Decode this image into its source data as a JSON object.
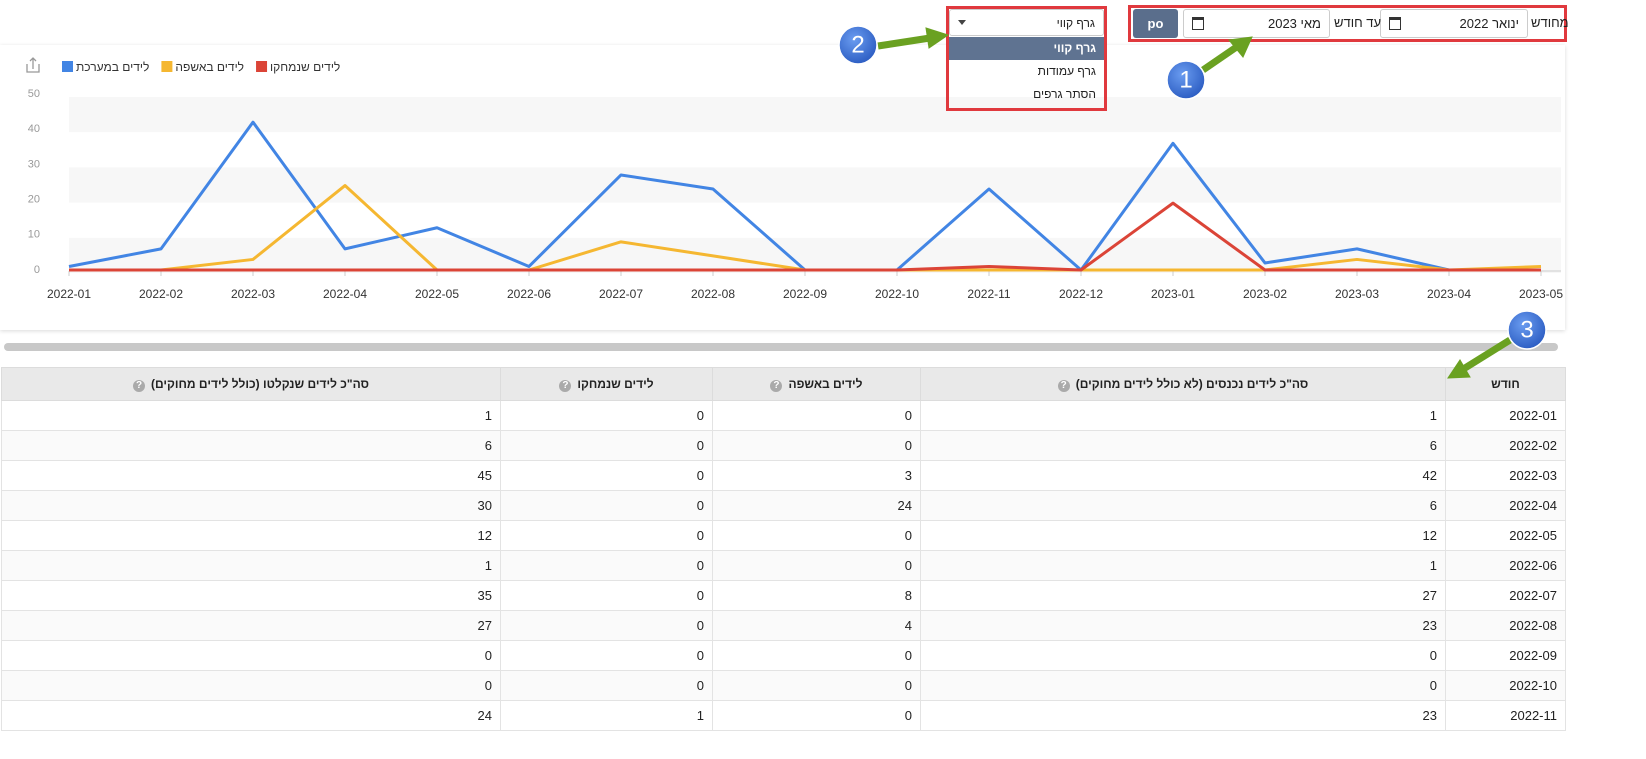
{
  "filters": {
    "from_label": "מחודש",
    "from_value": "ינואר 2022",
    "to_label": "עד חודש",
    "to_value": "מאי 2023",
    "button": "po"
  },
  "chart_type": {
    "selected": "גרף קווי",
    "options": [
      "גרף קווי",
      "גרף עמודות",
      "הסתר גרפים"
    ]
  },
  "annotations": [
    "1",
    "2",
    "3"
  ],
  "chart_data": {
    "type": "line",
    "categories": [
      "2022-01",
      "2022-02",
      "2022-03",
      "2022-04",
      "2022-05",
      "2022-06",
      "2022-07",
      "2022-08",
      "2022-09",
      "2022-10",
      "2022-11",
      "2022-12",
      "2023-01",
      "2023-02",
      "2023-03",
      "2023-04",
      "2023-05"
    ],
    "series": [
      {
        "name": "לידים במערכת",
        "color": "#4285e4",
        "values": [
          1,
          6,
          42,
          6,
          12,
          1,
          27,
          23,
          0,
          0,
          23,
          0,
          36,
          2,
          6,
          0,
          0
        ]
      },
      {
        "name": "לידים באשפה",
        "color": "#f5b731",
        "values": [
          0,
          0,
          3,
          24,
          0,
          0,
          8,
          4,
          0,
          0,
          0,
          0,
          0,
          0,
          3,
          0,
          1
        ]
      },
      {
        "name": "לידים שנמחקו",
        "color": "#db4437",
        "values": [
          0,
          0,
          0,
          0,
          0,
          0,
          0,
          0,
          0,
          0,
          1,
          0,
          19,
          0,
          0,
          0,
          0
        ]
      }
    ],
    "ylim": [
      0,
      50
    ],
    "yticks": [
      0,
      10,
      20,
      30,
      40,
      50
    ],
    "grid": true
  },
  "table": {
    "columns": [
      "חודש",
      "סה\"כ לידים נכנסים (לא כולל לידים מחוקים)",
      "לידים באשפה",
      "לידים שנמחקו",
      "סה\"כ לידים שנקלטו (כולל לידים מחוקים)"
    ],
    "rows": [
      [
        "2022-01",
        1,
        0,
        0,
        1
      ],
      [
        "2022-02",
        6,
        0,
        0,
        6
      ],
      [
        "2022-03",
        42,
        3,
        0,
        45
      ],
      [
        "2022-04",
        6,
        24,
        0,
        30
      ],
      [
        "2022-05",
        12,
        0,
        0,
        12
      ],
      [
        "2022-06",
        1,
        0,
        0,
        1
      ],
      [
        "2022-07",
        27,
        8,
        0,
        35
      ],
      [
        "2022-08",
        23,
        4,
        0,
        27
      ],
      [
        "2022-09",
        0,
        0,
        0,
        0
      ],
      [
        "2022-10",
        0,
        0,
        0,
        0
      ],
      [
        "2022-11",
        23,
        0,
        1,
        24
      ]
    ]
  }
}
